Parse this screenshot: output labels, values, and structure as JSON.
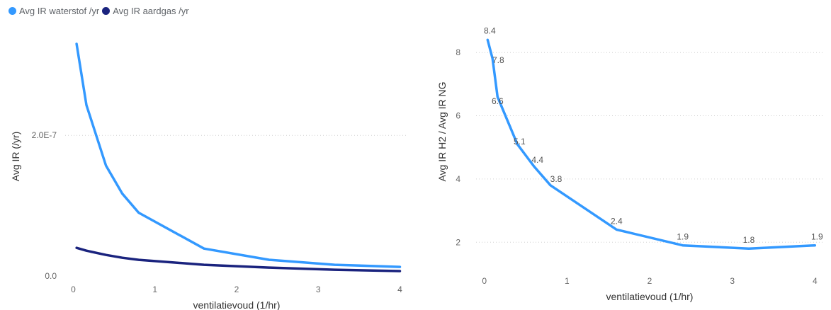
{
  "colors": {
    "waterstof": "#3399ff",
    "aardgas": "#1a237e",
    "axis_text": "#666666",
    "label_text": "#333333",
    "grid": "#d0d0d0",
    "data_label": "#555555"
  },
  "legend": {
    "items": [
      {
        "label": "Avg IR waterstof /yr",
        "color": "#3399ff"
      },
      {
        "label": "Avg IR aardgas /yr",
        "color": "#1a237e"
      }
    ]
  },
  "chart_data": [
    {
      "type": "line",
      "xlabel": "ventilatievoud (1/hr)",
      "ylabel": "Avg IR (/yr)",
      "x_ticks": [
        "0",
        "1",
        "2",
        "3",
        "4"
      ],
      "y_ticks": [
        "0.0",
        "2.0E-7"
      ],
      "xlim": [
        -0.1,
        4.1
      ],
      "ylim": [
        0,
        3.3e-07
      ],
      "grid": true,
      "legend_position": "top-left",
      "series": [
        {
          "name": "Avg IR waterstof /yr",
          "color": "#3399ff",
          "x": [
            0.04,
            0.16,
            0.4,
            0.6,
            0.8,
            1.6,
            2.4,
            3.2,
            4.0
          ],
          "y": [
            3.3e-07,
            2.43e-07,
            1.57e-07,
            1.17e-07,
            9e-08,
            3.9e-08,
            2.3e-08,
            1.6e-08,
            1.3e-08
          ]
        },
        {
          "name": "Avg IR aardgas /yr",
          "color": "#1a237e",
          "x": [
            0.04,
            0.16,
            0.4,
            0.6,
            0.8,
            1.6,
            2.4,
            3.2,
            4.0
          ],
          "y": [
            4e-08,
            3.6e-08,
            3e-08,
            2.6e-08,
            2.3e-08,
            1.6e-08,
            1.2e-08,
            9e-09,
            7e-09
          ]
        }
      ]
    },
    {
      "type": "line",
      "xlabel": "ventilatievoud (1/hr)",
      "ylabel": "Avg IR H2 / Avg IR NG",
      "x_ticks": [
        "0",
        "1",
        "2",
        "3",
        "4"
      ],
      "y_ticks": [
        "2",
        "4",
        "6",
        "8"
      ],
      "xlim": [
        -0.1,
        4.1
      ],
      "ylim": [
        1.2,
        8.9
      ],
      "grid": true,
      "series": [
        {
          "color": "#3399ff",
          "x": [
            0.04,
            0.1,
            0.16,
            0.4,
            0.6,
            0.8,
            1.6,
            2.4,
            3.2,
            4.0
          ],
          "y": [
            8.4,
            7.8,
            6.6,
            5.1,
            4.4,
            3.8,
            2.4,
            1.9,
            1.8,
            1.9
          ],
          "labels": [
            "8.4",
            "7.8",
            "6.6",
            "5.1",
            "4.4",
            "3.8",
            "2.4",
            "1.9",
            "1.8",
            "1.9"
          ]
        }
      ]
    }
  ]
}
